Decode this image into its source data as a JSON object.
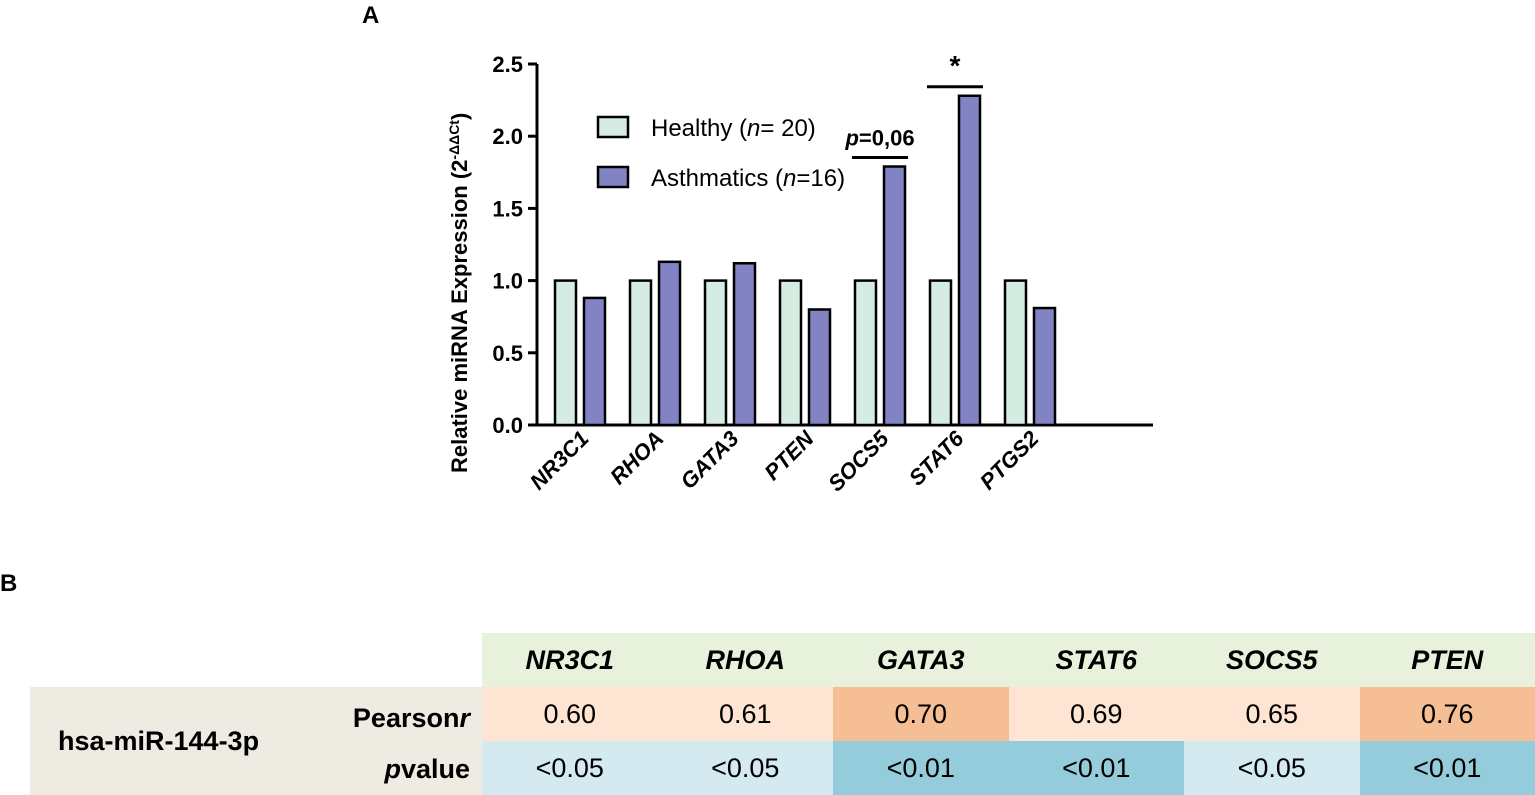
{
  "panel_a_label": "A",
  "panel_b_label": "B",
  "colors": {
    "healthy": "#d5ece2",
    "asthmatics": "#8283c3",
    "corr_light": "#fde4d3",
    "corr_dark": "#f6be94",
    "p_light": "#d5e9f0",
    "p_dark": "#94ccdc",
    "header_bg": "#e8f1dc",
    "rowhead_bg": "#eeebe2"
  },
  "chart_data": {
    "type": "bar",
    "title": "",
    "ylabel": "Relative miRNA Expression (2",
    "ylabel_sup": "-ΔΔCt",
    "ylabel_close": ")",
    "xlabel": "",
    "ylim": [
      0,
      2.5
    ],
    "yticks": [
      0,
      0.5,
      1.0,
      1.5,
      2.0,
      2.5
    ],
    "ytick_labels": [
      "0.0",
      "0.5",
      "1.0",
      "1.5",
      "2.0",
      "2.5"
    ],
    "categories": [
      "NR3C1",
      "RHOA",
      "GATA3",
      "PTEN",
      "SOCS5",
      "STAT6",
      "PTGS2"
    ],
    "series": [
      {
        "name": "Healthy",
        "legend_prefix": "Healthy (",
        "legend_n": "n",
        "legend_suffix": "= 20)",
        "values": [
          1.0,
          1.0,
          1.0,
          1.0,
          1.0,
          1.0,
          1.0
        ]
      },
      {
        "name": "Asthmatics",
        "legend_prefix": "Asthmatics (",
        "legend_n": "n",
        "legend_suffix": "=16)",
        "values": [
          0.88,
          1.13,
          1.12,
          0.8,
          1.79,
          2.28,
          0.81
        ]
      }
    ],
    "annotations": [
      {
        "category": "SOCS5",
        "label_italic": "p",
        "label_rest": "=0,06"
      },
      {
        "category": "STAT6",
        "label_italic": "",
        "label_rest": "*"
      }
    ]
  },
  "table": {
    "columns": [
      "NR3C1",
      "RHOA",
      "GATA3",
      "STAT6",
      "SOCS5",
      "PTEN"
    ],
    "row_group": "hsa-miR-144-3p",
    "pearson_label": "Pearson ",
    "pearson_r": "r",
    "pvalue_p": "p",
    "pvalue_label": " value",
    "pearson_values": [
      "0.60",
      "0.61",
      "0.70",
      "0.69",
      "0.65",
      "0.76"
    ],
    "pearson_strong": [
      false,
      false,
      true,
      false,
      false,
      true
    ],
    "p_values": [
      "<0.05",
      "<0.05",
      "<0.01",
      "<0.01",
      "<0.05",
      "<0.01"
    ],
    "p_strong": [
      false,
      false,
      true,
      true,
      false,
      true
    ]
  }
}
